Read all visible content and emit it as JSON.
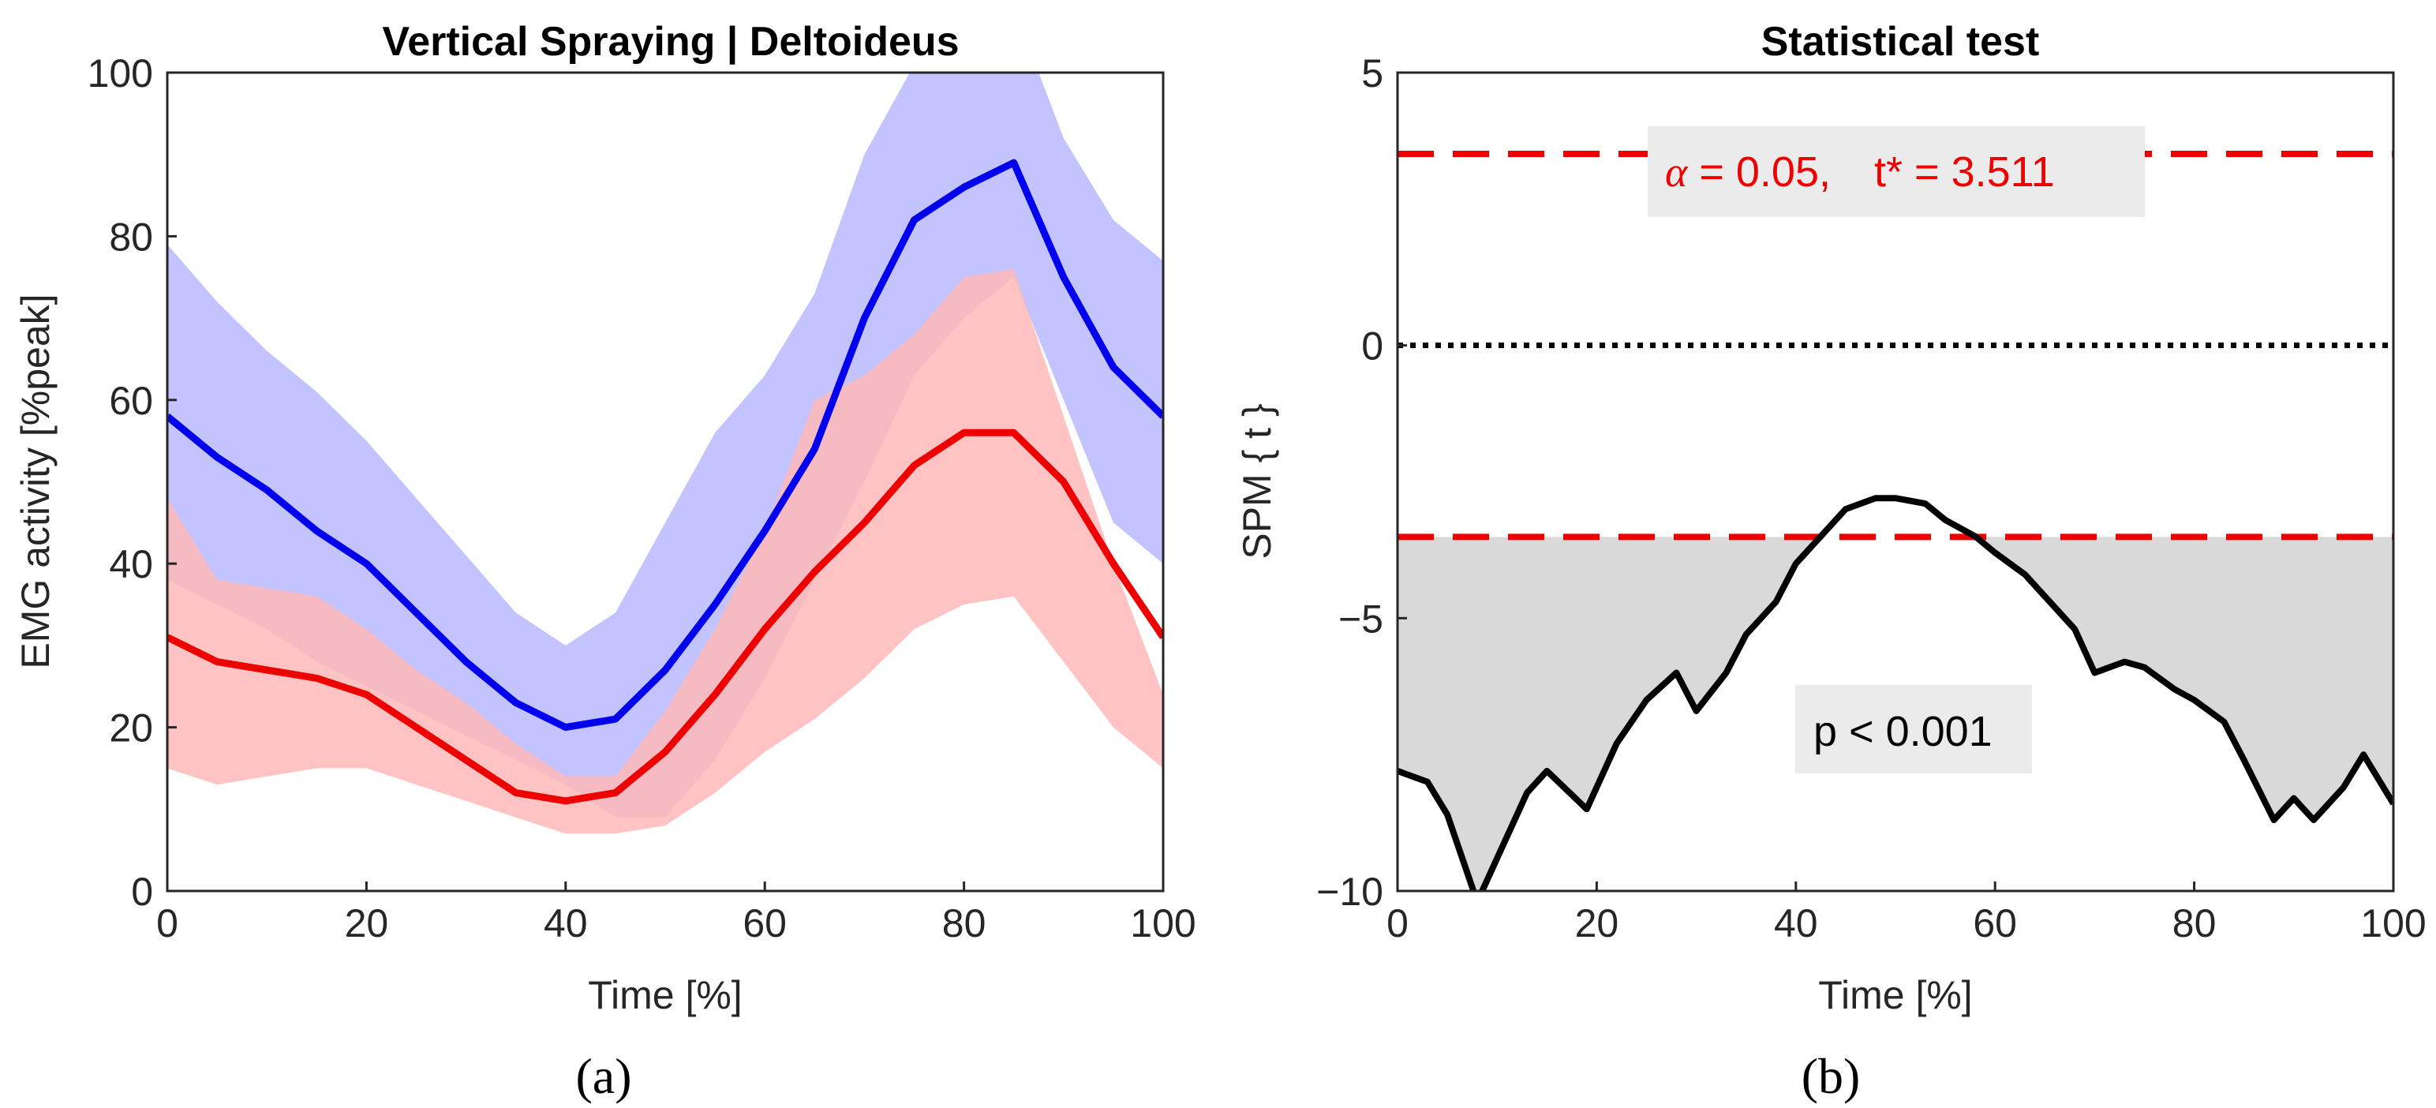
{
  "chart_data": [
    {
      "type": "line",
      "title": "Vertical Spraying | Deltoideus",
      "xlabel": "Time [%]",
      "ylabel": "EMG activity [%peak]",
      "caption": "(a)",
      "xlim": [
        0,
        100
      ],
      "ylim": [
        0,
        100
      ],
      "x_ticks": [
        "0",
        "20",
        "40",
        "60",
        "80",
        "100"
      ],
      "y_ticks": [
        "0",
        "20",
        "40",
        "60",
        "80",
        "100"
      ],
      "grid": false,
      "x": [
        0,
        5,
        10,
        15,
        20,
        25,
        30,
        35,
        40,
        45,
        50,
        55,
        60,
        65,
        70,
        75,
        80,
        85,
        90,
        95,
        100
      ],
      "series": [
        {
          "color": "#0000ee",
          "band_color": "#b9b9ff",
          "mean": [
            58,
            53,
            49,
            44,
            40,
            34,
            28,
            23,
            20,
            21,
            27,
            35,
            44,
            54,
            70,
            82,
            86,
            89,
            75,
            64,
            58
          ],
          "upper": [
            79,
            72,
            66,
            61,
            55,
            48,
            41,
            34,
            30,
            34,
            45,
            56,
            63,
            73,
            90,
            101,
            100,
            108,
            92,
            82,
            77
          ],
          "lower": [
            38,
            35,
            32,
            28,
            25,
            22,
            19,
            16,
            13,
            9,
            9,
            16,
            26,
            38,
            50,
            63,
            70,
            75,
            60,
            45,
            40
          ]
        },
        {
          "color": "#ee0000",
          "band_color": "#ffb8b8",
          "mean": [
            31,
            28,
            27,
            26,
            24,
            20,
            16,
            12,
            11,
            12,
            17,
            24,
            32,
            39,
            45,
            52,
            56,
            56,
            50,
            40,
            31
          ],
          "upper": [
            48,
            38,
            37,
            36,
            32,
            27,
            23,
            18,
            14,
            14,
            22,
            32,
            44,
            60,
            63,
            68,
            75,
            76,
            58,
            40,
            24
          ],
          "lower": [
            15,
            13,
            14,
            15,
            15,
            13,
            11,
            9,
            7,
            7,
            8,
            12,
            17,
            21,
            26,
            32,
            35,
            36,
            28,
            20,
            15
          ]
        }
      ]
    },
    {
      "type": "line",
      "title": "Statistical test",
      "xlabel": "Time [%]",
      "ylabel": "SPM { t }",
      "caption": "(b)",
      "xlim": [
        0,
        100
      ],
      "ylim": [
        -10,
        5
      ],
      "x_ticks": [
        "0",
        "20",
        "40",
        "60",
        "80",
        "100"
      ],
      "y_ticks": [
        "5",
        "0",
        "−5",
        "−10"
      ],
      "y_tick_values": [
        5,
        0,
        -5,
        -10
      ],
      "grid": false,
      "x": [
        0,
        3,
        5,
        8,
        10,
        13,
        15,
        19,
        22,
        25,
        28,
        30,
        33,
        35,
        38,
        40,
        43,
        45,
        48,
        50,
        53,
        55,
        58,
        60,
        63,
        65,
        68,
        70,
        73,
        75,
        78,
        80,
        83,
        85,
        88,
        90,
        92,
        95,
        97,
        100
      ],
      "t_values": [
        -7.8,
        -8.0,
        -8.6,
        -10.2,
        -9.4,
        -8.2,
        -7.8,
        -8.5,
        -7.3,
        -6.5,
        -6.0,
        -6.7,
        -6.0,
        -5.3,
        -4.7,
        -4.0,
        -3.4,
        -3.0,
        -2.8,
        -2.8,
        -2.9,
        -3.2,
        -3.5,
        -3.8,
        -4.2,
        -4.6,
        -5.2,
        -6.0,
        -5.8,
        -5.9,
        -6.3,
        -6.5,
        -6.9,
        -7.6,
        -8.7,
        -8.3,
        -8.7,
        -8.1,
        -7.5,
        -8.4
      ],
      "threshold": 3.511,
      "threshold_color": "#ee0000",
      "zero_line": 0,
      "annotations": {
        "alpha_symbol": "α",
        "alpha_text": " = 0.05,",
        "tstar_text": "t* = 3.511",
        "p_text": "p < 0.001"
      }
    }
  ]
}
